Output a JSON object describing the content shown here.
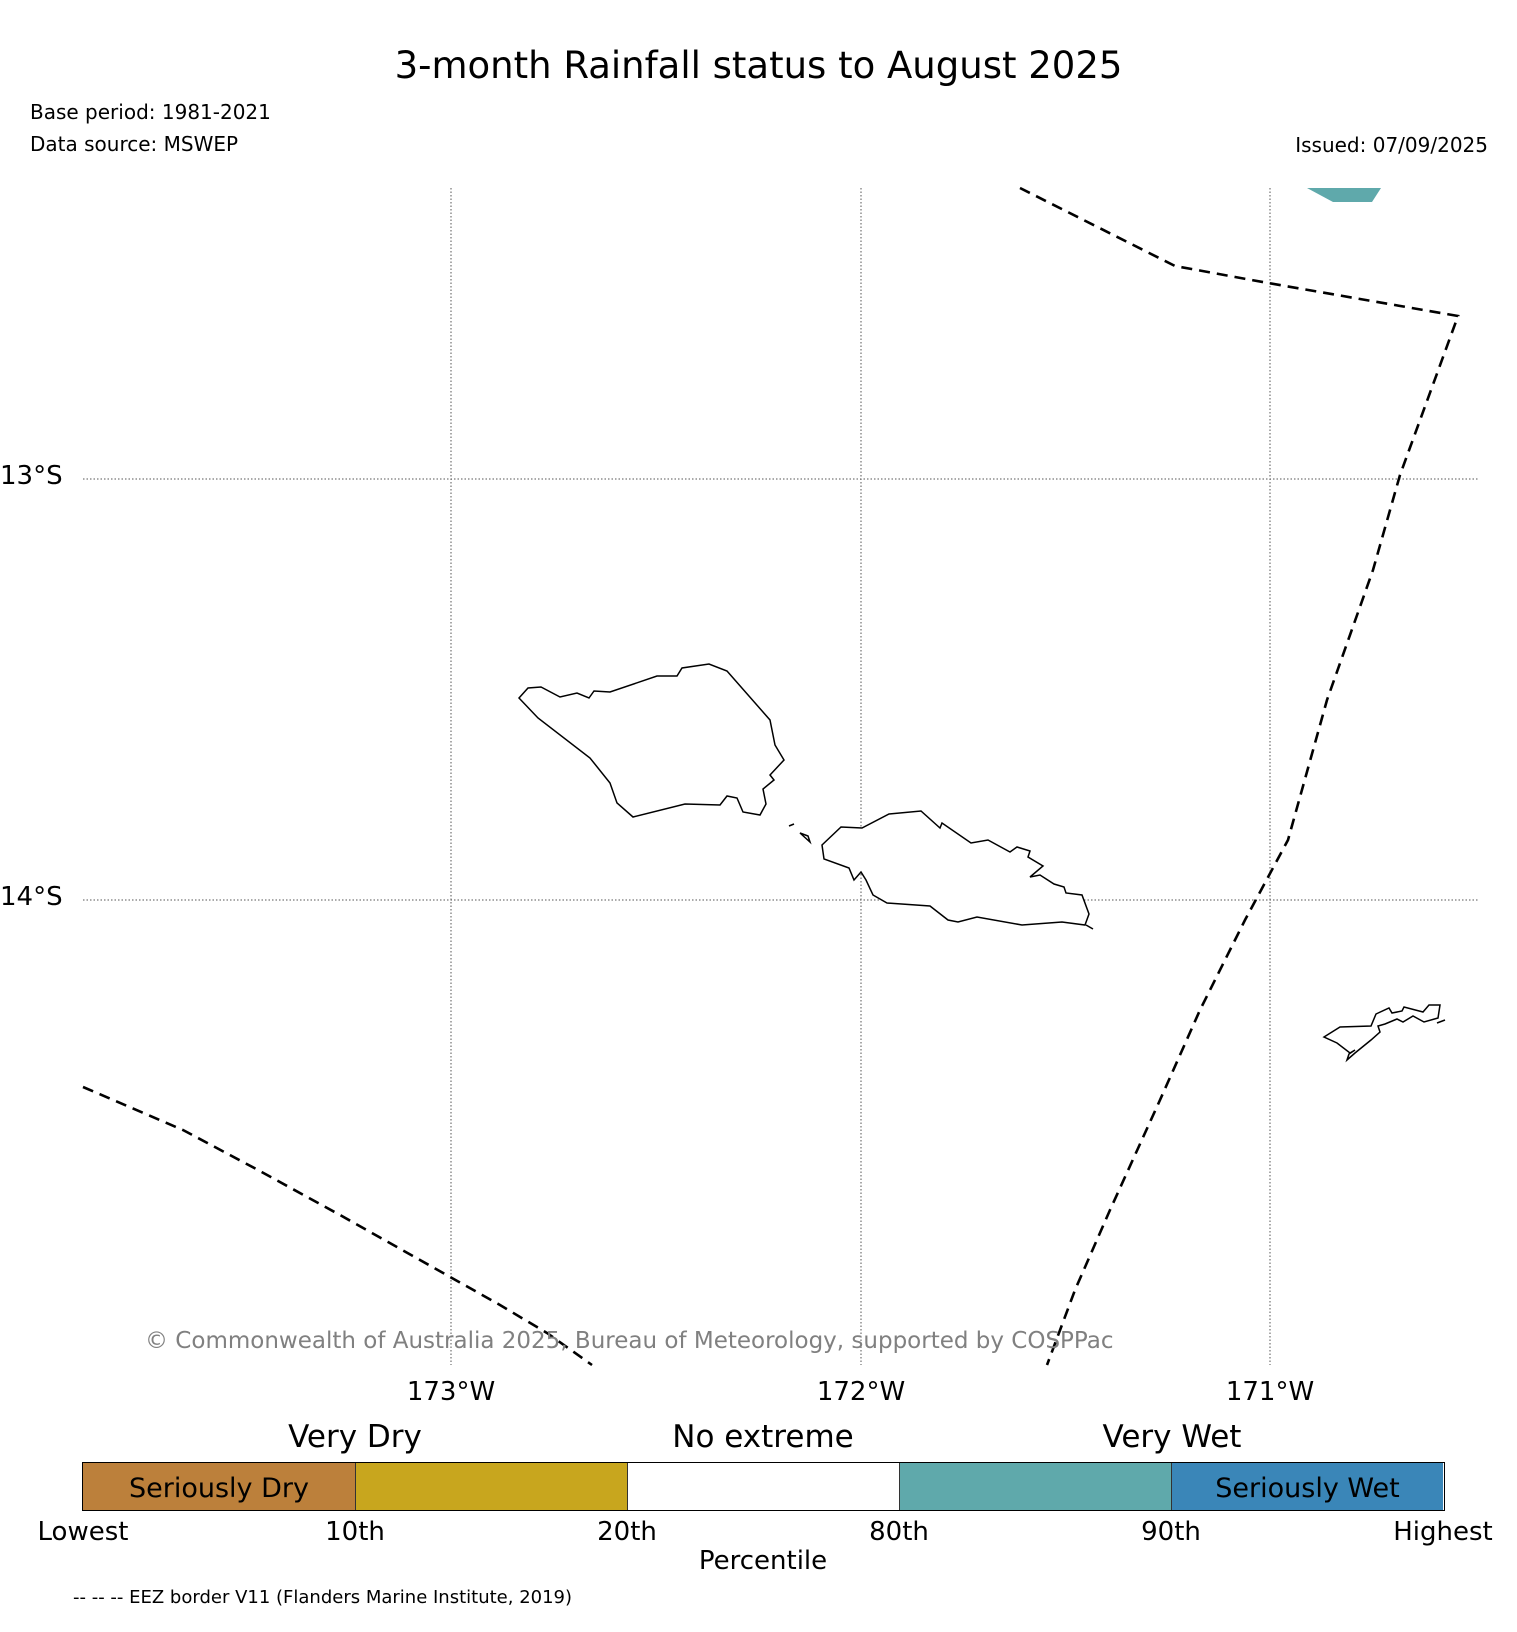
{
  "map": {
    "title": "3-month Rainfall status to August 2025",
    "base_period": "Base period: 1981-2021",
    "data_source": "Data source: MSWEP",
    "issued": "Issued: 07/09/2025",
    "lat_labels": [
      "13°S",
      "14°S"
    ],
    "lon_labels": [
      "173°W",
      "172°W",
      "171°W"
    ],
    "copyright": "© Commonwealth of Australia 2025, Bureau of Meteorology, supported by COSPPac",
    "footnote": "-- -- -- EEZ border V11 (Flanders Marine Institute, 2019)",
    "colors": {
      "seriously_dry": "#BC803B",
      "very_dry": "#C8A61E",
      "no_extreme": "#FFFFFF",
      "very_wet": "#5FA9AB",
      "seriously_wet": "#3A86B8"
    }
  },
  "legend": {
    "categories": [
      "Very Dry",
      "No extreme",
      "Very Wet"
    ],
    "bins": [
      {
        "label": "Seriously Dry",
        "color": "#BC803B"
      },
      {
        "label": "",
        "color": "#C8A61E"
      },
      {
        "label": "",
        "color": "#FFFFFF"
      },
      {
        "label": "",
        "color": "#5FA9AB"
      },
      {
        "label": "Seriously Wet",
        "color": "#3A86B8"
      }
    ],
    "ticks": [
      "Lowest",
      "10th",
      "20th",
      "80th",
      "90th",
      "Highest"
    ],
    "axis_label": "Percentile"
  }
}
